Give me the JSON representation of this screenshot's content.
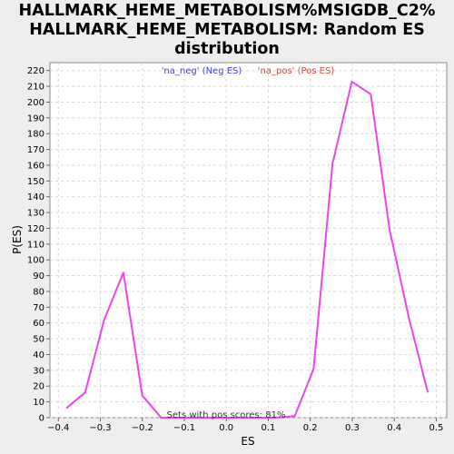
{
  "chart_data": {
    "type": "line",
    "title_lines": [
      "HALLMARK_HEME_METABOLISM%MSIGDB_C2%",
      "HALLMARK_HEME_METABOLISM: Random ES",
      "distribution"
    ],
    "xlabel": "ES",
    "ylabel": "P(ES)",
    "xlim": [
      -0.42,
      0.525
    ],
    "ylim": [
      0,
      225
    ],
    "x_ticks": [
      -0.4,
      -0.3,
      -0.2,
      -0.1,
      0.0,
      0.1,
      0.2,
      0.3,
      0.4,
      0.5
    ],
    "x_tick_labels": [
      "−0.4",
      "−0.3",
      "−0.2",
      "−0.1",
      "0.0",
      "0.1",
      "0.2",
      "0.3",
      "0.4",
      "0.5"
    ],
    "y_ticks": [
      0,
      10,
      20,
      30,
      40,
      50,
      60,
      70,
      80,
      90,
      100,
      110,
      120,
      130,
      140,
      150,
      160,
      170,
      180,
      190,
      200,
      210,
      220
    ],
    "grid": true,
    "legend": [
      {
        "label": "'na_neg' (Neg ES)",
        "color": "#4040e0"
      },
      {
        "label": "'na_pos' (Pos ES)",
        "color": "#e04040"
      }
    ],
    "annotation": "Sets with pos scores: 81%",
    "series": [
      {
        "color": "#ee44ee",
        "points": [
          [
            -0.381,
            6
          ],
          [
            -0.336,
            16
          ],
          [
            -0.291,
            62
          ],
          [
            -0.245,
            92
          ],
          [
            -0.2,
            14
          ],
          [
            -0.155,
            0
          ],
          [
            -0.109,
            0
          ],
          [
            -0.064,
            0
          ],
          [
            -0.019,
            0
          ],
          [
            0.027,
            0
          ],
          [
            0.072,
            0
          ],
          [
            0.117,
            0
          ],
          [
            0.163,
            1
          ],
          [
            0.208,
            31
          ],
          [
            0.253,
            161
          ],
          [
            0.299,
            213
          ],
          [
            0.344,
            205
          ],
          [
            0.389,
            119
          ],
          [
            0.435,
            63
          ],
          [
            0.48,
            16
          ]
        ]
      }
    ]
  }
}
